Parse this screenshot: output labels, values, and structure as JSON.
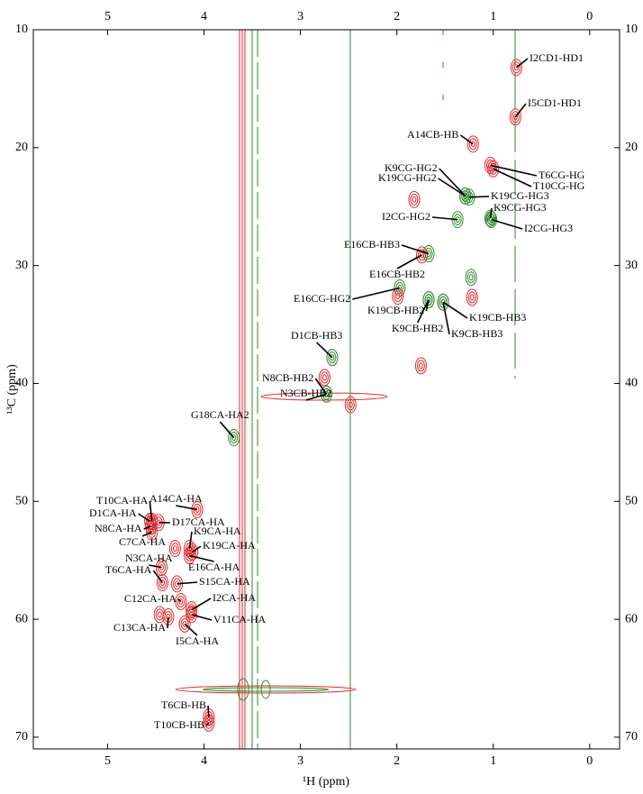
{
  "chart_data": {
    "type": "scatter",
    "xlabel": "¹H (ppm)",
    "ylabel": "¹³C (ppm)",
    "xlim": [
      5.77,
      -0.31
    ],
    "ylim": [
      10,
      71
    ],
    "xticks": [
      5,
      4,
      3,
      2,
      1,
      0
    ],
    "yticks": [
      10,
      20,
      30,
      40,
      50,
      60,
      70
    ],
    "peaks": [
      {
        "label": "I2CD1-HD1",
        "x": 0.76,
        "y": 13.2,
        "color": "#e2282d"
      },
      {
        "label": "I5CD1-HD1",
        "x": 0.77,
        "y": 17.4,
        "color": "#e2282d"
      },
      {
        "label": "A14CB-HB",
        "x": 1.21,
        "y": 19.7,
        "color": "#e2282d"
      },
      {
        "label": "T6CG-HG",
        "x": 1.03,
        "y": 21.5,
        "color": "#e2282d"
      },
      {
        "label": "T10CG-HG",
        "x": 1.0,
        "y": 21.8,
        "color": "#e2282d"
      },
      {
        "label": "K9CG-HG2",
        "x": 1.29,
        "y": 24.1,
        "color": "#2e8b2e"
      },
      {
        "label": "K19CG-HG2",
        "x": 1.29,
        "y": 24.1,
        "color": "#2e8b2e"
      },
      {
        "label": "K19CG-HG3",
        "x": 1.25,
        "y": 24.2,
        "color": "#2e8b2e"
      },
      {
        "label": "K9CG-HG3",
        "x": 1.03,
        "y": 26.0,
        "color": "#2e8b2e"
      },
      {
        "label": "I2CG-HG2",
        "x": 1.37,
        "y": 26.1,
        "color": "#2e8b2e"
      },
      {
        "label": "I2CG-HG3",
        "x": 1.02,
        "y": 26.1,
        "color": "#2e8b2e"
      },
      {
        "label": "E16CB-HB3",
        "x": 1.67,
        "y": 29.0,
        "color": "#2e8b2e"
      },
      {
        "label": "E16CB-HB2",
        "x": 1.74,
        "y": 29.1,
        "color": "#e2282d"
      },
      {
        "label": "E16CG-HG2",
        "x": 1.97,
        "y": 31.9,
        "color": "#2e8b2e"
      },
      {
        "label": "K19CB-HB2",
        "x": 1.67,
        "y": 32.9,
        "color": "#2e8b2e"
      },
      {
        "label": "K9CB-HB2",
        "x": 1.67,
        "y": 32.9,
        "color": "#2e8b2e"
      },
      {
        "label": "K19CB-HB3",
        "x": 1.52,
        "y": 33.1,
        "color": "#2e8b2e"
      },
      {
        "label": "K9CB-HB3",
        "x": 1.52,
        "y": 33.1,
        "color": "#2e8b2e"
      },
      {
        "label": "D1CB-HB3",
        "x": 2.67,
        "y": 37.8,
        "color": "#2e8b2e"
      },
      {
        "label": "N8CB-HB2",
        "x": 2.73,
        "y": 40.9,
        "color": "#2e8b2e"
      },
      {
        "label": "N3CB-HB2",
        "x": 2.73,
        "y": 40.9,
        "color": "#2e8b2e"
      },
      {
        "label": "G18CA-HA2",
        "x": 3.69,
        "y": 44.6,
        "color": "#2e8b2e"
      },
      {
        "label": "T10CA-HA",
        "x": 4.54,
        "y": 51.7,
        "color": "#e2282d"
      },
      {
        "label": "A14CA-HA",
        "x": 4.07,
        "y": 50.7,
        "color": "#e2282d"
      },
      {
        "label": "D1CA-HA",
        "x": 4.56,
        "y": 51.7,
        "color": "#e2282d"
      },
      {
        "label": "D17CA-HA",
        "x": 4.47,
        "y": 51.8,
        "color": "#e2282d"
      },
      {
        "label": "N8CA-HA",
        "x": 4.55,
        "y": 52.1,
        "color": "#e2282d"
      },
      {
        "label": "C7CA-HA",
        "x": 4.54,
        "y": 52.6,
        "color": "#e2282d"
      },
      {
        "label": "K9CA-HA",
        "x": 4.15,
        "y": 54.0,
        "color": "#e2282d"
      },
      {
        "label": "K19CA-HA",
        "x": 4.12,
        "y": 54.3,
        "color": "#e2282d"
      },
      {
        "label": "N3CA-HA",
        "x": 4.44,
        "y": 55.6,
        "color": "#e2282d"
      },
      {
        "label": "E16CA-HA",
        "x": 4.15,
        "y": 54.6,
        "color": "#e2282d"
      },
      {
        "label": "T6CA-HA",
        "x": 4.43,
        "y": 56.9,
        "color": "#e2282d"
      },
      {
        "label": "S15CA-HA",
        "x": 4.28,
        "y": 57.0,
        "color": "#e2282d"
      },
      {
        "label": "C12CA-HA",
        "x": 4.24,
        "y": 58.5,
        "color": "#e2282d"
      },
      {
        "label": "I2CA-HA",
        "x": 4.13,
        "y": 59.2,
        "color": "#e2282d"
      },
      {
        "label": "V11CA-HA",
        "x": 4.13,
        "y": 59.6,
        "color": "#e2282d"
      },
      {
        "label": "C13CA-HA",
        "x": 4.37,
        "y": 59.8,
        "color": "#e2282d"
      },
      {
        "label": "I5CA-HA",
        "x": 4.2,
        "y": 60.4,
        "color": "#e2282d"
      },
      {
        "label": "T6CB-HB",
        "x": 3.95,
        "y": 68.3,
        "color": "#e2282d"
      },
      {
        "label": "T10CB-HB",
        "x": 3.95,
        "y": 68.8,
        "color": "#e2282d"
      },
      {
        "x": 1.82,
        "y": 24.4,
        "color": "#e2282d"
      },
      {
        "x": 1.23,
        "y": 31.0,
        "color": "#2e8b2e"
      },
      {
        "x": 1.22,
        "y": 32.7,
        "color": "#e2282d"
      },
      {
        "x": 1.75,
        "y": 38.5,
        "color": "#e2282d"
      },
      {
        "x": 1.99,
        "y": 32.6,
        "color": "#e2282d"
      },
      {
        "x": 2.75,
        "y": 39.5,
        "color": "#e2282d"
      },
      {
        "x": 2.48,
        "y": 41.8,
        "color": "#e2282d"
      },
      {
        "x": 4.3,
        "y": 54.0,
        "color": "#e2282d"
      },
      {
        "x": 4.46,
        "y": 59.6,
        "color": "#e2282d"
      }
    ]
  }
}
